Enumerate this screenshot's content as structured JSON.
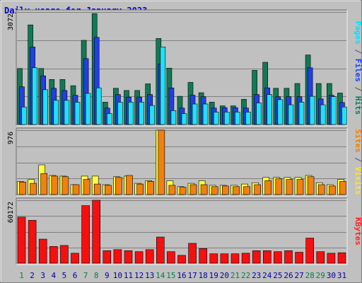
{
  "chart_data": {
    "type": "bar",
    "title": "Daily usage for January 2023",
    "categories": [
      "1",
      "2",
      "3",
      "4",
      "5",
      "6",
      "7",
      "8",
      "9",
      "10",
      "11",
      "12",
      "13",
      "14",
      "15",
      "16",
      "17",
      "18",
      "19",
      "20",
      "21",
      "22",
      "23",
      "24",
      "25",
      "26",
      "27",
      "28",
      "29",
      "30",
      "31"
    ],
    "weekend_days": [
      "1",
      "7",
      "8",
      "14",
      "15",
      "21",
      "22",
      "28",
      "29"
    ],
    "panels": [
      {
        "id": "top",
        "ymax_label": "3072",
        "ymax": 3072,
        "grid": true,
        "side_label": [
          {
            "text": "Pages",
            "color": "#00e0ff"
          },
          {
            "text": " / ",
            "color": "#505050"
          },
          {
            "text": "Files",
            "color": "#1040ff"
          },
          {
            "text": " / ",
            "color": "#505050"
          },
          {
            "text": "Hits",
            "color": "#008060"
          }
        ],
        "series": [
          {
            "name": "Hits",
            "color": "#117a55",
            "values": [
              1530,
              2720,
              1530,
              1230,
              1230,
              1060,
              2300,
              3030,
              610,
              990,
              930,
              930,
              1110,
              2350,
              1540,
              770,
              1150,
              870,
              610,
              510,
              510,
              690,
              1480,
              1700,
              990,
              990,
              1120,
              1900,
              1120,
              1120,
              860
            ]
          },
          {
            "name": "Files",
            "color": "#2040e0",
            "values": [
              1030,
              2120,
              1330,
              990,
              930,
              800,
              1800,
              2380,
              450,
              820,
              750,
              750,
              820,
              1650,
              1000,
              450,
              800,
              760,
              450,
              460,
              460,
              450,
              820,
              1000,
              760,
              760,
              760,
              1550,
              700,
              800,
              600
            ]
          },
          {
            "name": "Pages",
            "color": "#20e0f8",
            "values": [
              480,
              1550,
              950,
              660,
              660,
              610,
              850,
              1000,
              300,
              610,
              610,
              610,
              520,
              2120,
              380,
              300,
              560,
              560,
              340,
              340,
              340,
              340,
              590,
              820,
              680,
              540,
              610,
              770,
              540,
              760,
              480
            ]
          }
        ]
      },
      {
        "id": "middle",
        "ymax_label": "976",
        "ymax": 976,
        "grid": true,
        "side_label": [
          {
            "text": "Sites",
            "color": "#f08000"
          },
          {
            "text": " / ",
            "color": "#505050"
          },
          {
            "text": "Visits",
            "color": "#ffe820"
          }
        ],
        "series": [
          {
            "name": "Visits",
            "color": "#ffff40",
            "values": [
              200,
              230,
              450,
              290,
              280,
              150,
              280,
              280,
              150,
              270,
              280,
              170,
              210,
              976,
              210,
              120,
              170,
              210,
              140,
              140,
              140,
              160,
              180,
              260,
              260,
              260,
              260,
              290,
              180,
              150,
              230
            ]
          },
          {
            "name": "Sites",
            "color": "#f08010",
            "values": [
              190,
              170,
              320,
              280,
              270,
              150,
              230,
              160,
              140,
              260,
              290,
              160,
              200,
              976,
              140,
              110,
              150,
              150,
              120,
              130,
              120,
              120,
              150,
              210,
              240,
              230,
              230,
              270,
              150,
              130,
              200
            ]
          }
        ]
      },
      {
        "id": "bottom",
        "ymax_label": "60172",
        "ymax": 60172,
        "grid": true,
        "side_label": [
          {
            "text": "KBytes",
            "color": "#ff2020"
          }
        ],
        "series": [
          {
            "name": "KBytes",
            "color": "#f41010",
            "values": [
              44000,
              41000,
              23000,
              16000,
              17000,
              9500,
              55000,
              60172,
              12000,
              13000,
              12000,
              11000,
              13000,
              25000,
              11000,
              7500,
              19000,
              14000,
              9000,
              9000,
              9000,
              9500,
              12000,
              12000,
              11000,
              12000,
              10500,
              24000,
              11000,
              9500,
              10000
            ]
          }
        ]
      }
    ]
  }
}
